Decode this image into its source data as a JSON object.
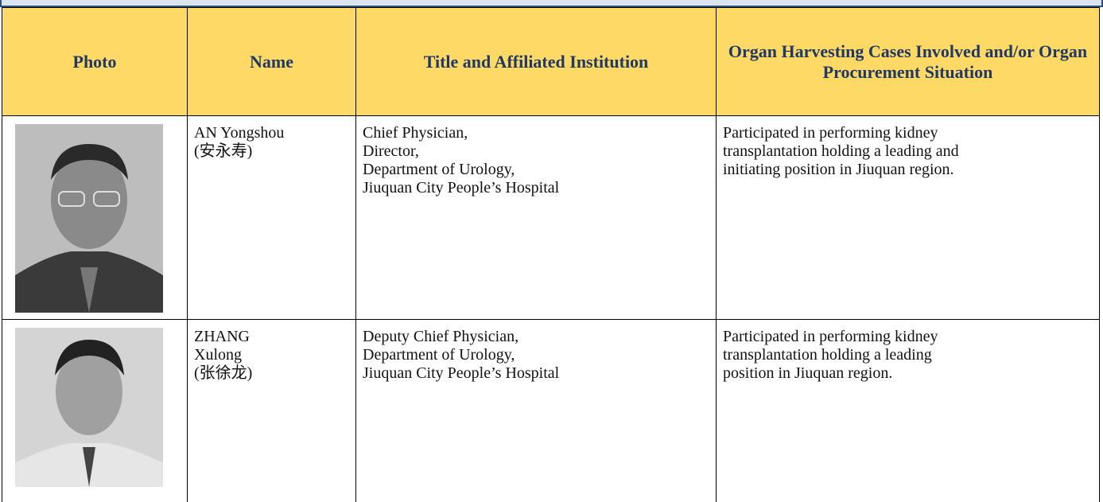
{
  "table": {
    "headers": [
      "Photo",
      "Name",
      "Title and Affiliated Institution",
      "Organ Harvesting Cases Involved and/or Organ Procurement Situation"
    ],
    "rows": [
      {
        "name": [
          "AN Yongshou",
          "(安永寿)"
        ],
        "title": [
          "Chief Physician,",
          "Director,",
          "Department of Urology,",
          "Jiuquan City People’s Hospital"
        ],
        "description": [
          "Participated in performing kidney",
          "transplantation holding a leading and",
          "initiating position in Jiuquan region."
        ]
      },
      {
        "name": [
          "ZHANG",
          "Xulong",
          "(张徐龙)"
        ],
        "title": [
          "Deputy Chief Physician,",
          "Department of Urology,",
          "Jiuquan City People’s Hospital"
        ],
        "description": [
          "Participated in performing kidney",
          "transplantation holding a leading",
          "position in Jiuquan region."
        ]
      }
    ]
  }
}
